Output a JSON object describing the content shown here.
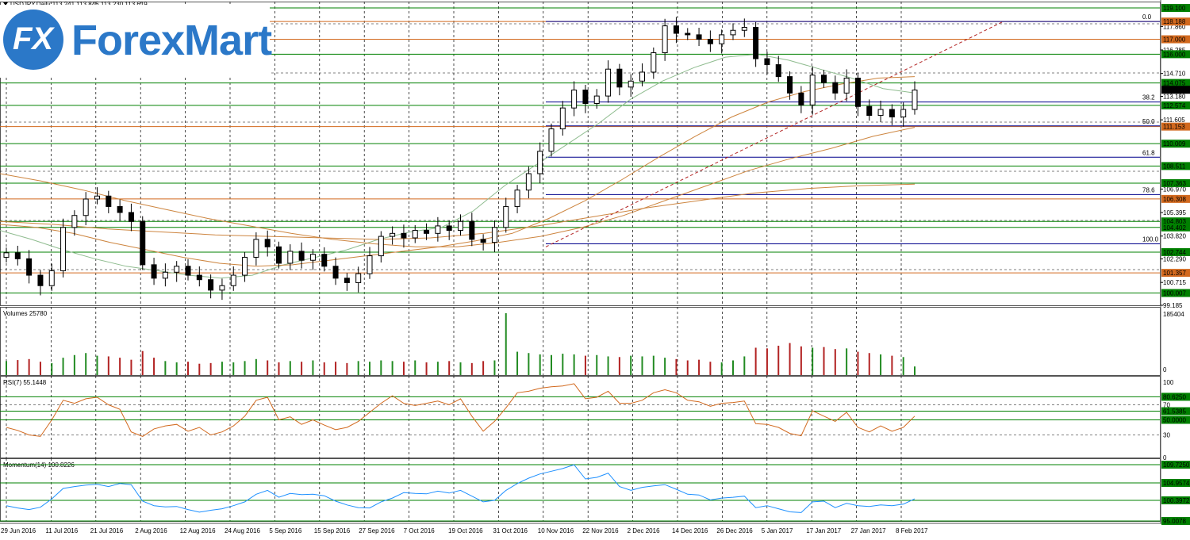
{
  "header": {
    "symbol_line": "USDJPY,Daily  113.241 113.846 113.230 113.619",
    "logo_mark": "FX",
    "logo_text": "ForexMart"
  },
  "colors": {
    "price_line": "#008000",
    "indicator": "#d2691e",
    "fib": "#00008b",
    "ma": "#cd853f",
    "momentum": "#1e90ff"
  },
  "chart_data": [
    {
      "type": "candlestick",
      "title": "USDJPY,Daily",
      "ohlc_readout": "113.241 113.846 113.230 113.619",
      "ylim": [
        99.185,
        119.1
      ],
      "price_axis_ticks": [
        "117.860",
        "116.285",
        "114.710",
        "113.180",
        "111.605",
        "106.970",
        "105.395",
        "103.820",
        "102.290",
        "100.715",
        "99.185"
      ],
      "levels": [
        {
          "value": 119.1,
          "label": "119.100",
          "color": "#008000"
        },
        {
          "value": 118.188,
          "label": "118.188",
          "color": "#d2691e"
        },
        {
          "value": 117.0,
          "label": "117.000",
          "color": "#d2691e"
        },
        {
          "value": 116.0,
          "label": "116.000",
          "color": "#008000"
        },
        {
          "value": 114.075,
          "label": "114.075",
          "color": "#008000"
        },
        {
          "value": 112.574,
          "label": "112.574",
          "color": "#008000"
        },
        {
          "value": 111.153,
          "label": "111.153",
          "color": "#d2691e"
        },
        {
          "value": 110.009,
          "label": "110.009",
          "color": "#008000"
        },
        {
          "value": 108.511,
          "label": "108.511",
          "color": "#008000"
        },
        {
          "value": 107.363,
          "label": "107.363",
          "color": "#008000"
        },
        {
          "value": 106.308,
          "label": "106.308",
          "color": "#d2691e"
        },
        {
          "value": 104.803,
          "label": "104.803",
          "color": "#008000"
        },
        {
          "value": 104.402,
          "label": "104.402",
          "color": "#008000"
        },
        {
          "value": 102.744,
          "label": "102.744",
          "color": "#008000"
        },
        {
          "value": 101.357,
          "label": "101.357",
          "color": "#d2691e"
        },
        {
          "value": 100.007,
          "label": "100.007",
          "color": "#008000"
        }
      ],
      "current_price": {
        "value": 113.619,
        "label": "113.619"
      },
      "fibonacci": [
        {
          "level": "0.0",
          "price": 118.188
        },
        {
          "level": "38.2",
          "price": 112.8
        },
        {
          "level": "50.0",
          "price": 111.2
        },
        {
          "level": "61.8",
          "price": 109.1
        },
        {
          "level": "78.6",
          "price": 106.6
        },
        {
          "level": "100.0",
          "price": 103.3
        }
      ],
      "x_labels": [
        "29 Jun 2016",
        "11 Jul 2016",
        "21 Jul 2016",
        "2 Aug 2016",
        "12 Aug 2016",
        "24 Aug 2016",
        "5 Sep 2016",
        "15 Sep 2016",
        "27 Sep 2016",
        "7 Oct 2016",
        "19 Oct 2016",
        "31 Oct 2016",
        "10 Nov 2016",
        "22 Nov 2016",
        "2 Dec 2016",
        "14 Dec 2016",
        "26 Dec 2016",
        "5 Jan 2017",
        "17 Jan 2017",
        "27 Jan 2017",
        "8 Feb 2017"
      ],
      "closes": [
        102.7,
        102.3,
        101.2,
        100.5,
        101.5,
        104.4,
        105.2,
        106.3,
        106.5,
        105.8,
        105.4,
        104.8,
        101.9,
        101.0,
        101.4,
        101.8,
        101.2,
        100.9,
        100.2,
        100.5,
        101.2,
        102.4,
        103.6,
        103.1,
        102.0,
        102.8,
        102.2,
        102.6,
        101.8,
        101.0,
        100.7,
        101.3,
        102.5,
        103.8,
        104.0,
        103.7,
        104.2,
        104.0,
        104.5,
        104.2,
        104.8,
        103.6,
        103.4,
        104.4,
        105.8,
        106.9,
        108.0,
        109.5,
        111.0,
        112.4,
        113.6,
        112.7,
        113.2,
        115.0,
        113.8,
        114.2,
        114.8,
        116.1,
        117.9,
        117.4,
        117.3,
        117.0,
        116.7,
        117.3,
        117.6,
        117.8,
        115.7,
        115.3,
        114.5,
        113.4,
        112.6,
        114.6,
        114.1,
        113.4,
        114.4,
        112.5,
        111.9,
        112.3,
        111.8,
        112.3,
        113.6
      ],
      "ma_series": [
        {
          "period_hint": "fast",
          "values": [
            104.2,
            103.6,
            102.9,
            102.3,
            101.8,
            101.5,
            101.2,
            101.0,
            101.2,
            101.9,
            102.4,
            102.9,
            103.6,
            104.1,
            104.4,
            105.5,
            107.2,
            108.6,
            110.0,
            111.4,
            113.0,
            114.2,
            115.1,
            115.8,
            116.0,
            115.6,
            115.0,
            114.4,
            113.7,
            113.4
          ]
        },
        {
          "period_hint": "medium",
          "values": [
            104.6,
            104.4,
            104.0,
            103.4,
            102.9,
            102.4,
            102.0,
            101.8,
            101.9,
            102.2,
            102.5,
            102.8,
            103.1,
            103.5,
            104.0,
            105.0,
            106.2,
            107.6,
            109.1,
            110.5,
            111.8,
            112.8,
            113.5,
            114.0,
            114.4,
            114.5
          ]
        },
        {
          "period_hint": "slow",
          "values": [
            108.0,
            107.5,
            106.9,
            106.2,
            105.6,
            105.0,
            104.5,
            104.0,
            103.6,
            103.3,
            103.1,
            103.1,
            103.4,
            103.8,
            104.4,
            105.2,
            106.2,
            107.2,
            108.2,
            109.0,
            109.7,
            110.5,
            111.1
          ]
        },
        {
          "period_hint": "very-slow",
          "values": [
            104.8,
            104.6,
            104.3,
            104.1,
            103.9,
            103.8,
            103.7,
            103.6,
            103.7,
            104.0,
            104.5,
            105.1,
            105.7,
            106.2,
            106.7,
            107.0,
            107.2,
            107.3
          ]
        }
      ]
    },
    {
      "type": "bar",
      "title": "Volumes 25780",
      "ylim": [
        0,
        185404
      ],
      "axis_labels": [
        "185404",
        "0"
      ],
      "values": [
        42000,
        45000,
        48000,
        40000,
        36000,
        52000,
        60000,
        66000,
        58000,
        56000,
        52000,
        46000,
        72000,
        52000,
        42000,
        38000,
        40000,
        34000,
        36000,
        40000,
        38000,
        42000,
        48000,
        44000,
        38000,
        42000,
        40000,
        44000,
        38000,
        40000,
        36000,
        42000,
        40000,
        44000,
        42000,
        40000,
        44000,
        38000,
        40000,
        42000,
        38000,
        36000,
        42000,
        44000,
        185404,
        70000,
        66000,
        62000,
        60000,
        64000,
        62000,
        58000,
        60000,
        56000,
        54000,
        58000,
        56000,
        58000,
        52000,
        48000,
        44000,
        46000,
        40000,
        38000,
        44000,
        56000,
        82000,
        80000,
        88000,
        96000,
        86000,
        82000,
        84000,
        78000,
        80000,
        70000,
        66000,
        62000,
        58000,
        54000,
        25780
      ]
    },
    {
      "type": "line",
      "title": "RSI(7) 55.1448",
      "ylim": [
        0,
        100
      ],
      "axis_ticks": [
        "100",
        "70",
        "50",
        "30",
        "0"
      ],
      "levels": [
        {
          "value": 80.625,
          "label": "80.6250"
        },
        {
          "value": 61.5385,
          "label": "61.5385"
        },
        {
          "value": 50.0,
          "label": "50.0000"
        }
      ],
      "values": [
        40,
        36,
        30,
        28,
        50,
        76,
        72,
        78,
        80,
        70,
        64,
        34,
        28,
        38,
        42,
        44,
        35,
        40,
        30,
        34,
        42,
        55,
        76,
        80,
        50,
        54,
        44,
        50,
        43,
        37,
        40,
        48,
        60,
        72,
        82,
        72,
        69,
        72,
        75,
        70,
        78,
        55,
        35,
        48,
        66,
        86,
        88,
        92,
        94,
        95,
        98,
        78,
        80,
        88,
        72,
        72,
        76,
        86,
        90,
        86,
        76,
        74,
        68,
        72,
        73,
        75,
        45,
        44,
        40,
        32,
        29,
        62,
        55,
        48,
        60,
        40,
        34,
        42,
        35,
        40,
        55
      ]
    },
    {
      "type": "line",
      "title": "Momentum(14) 100.8226",
      "ylim": [
        95.0078,
        109.725
      ],
      "axis_labels": [
        "109.7250",
        "104.9574",
        "100.3972",
        "95.0078"
      ],
      "values": [
        99.0,
        98.4,
        98.0,
        98.6,
        100.8,
        103.5,
        104.0,
        104.4,
        104.6,
        104.0,
        104.8,
        104.5,
        100.2,
        99.0,
        98.7,
        98.8,
        98.0,
        97.3,
        97.8,
        98.2,
        99.0,
        100.0,
        102.0,
        103.0,
        101.2,
        102.2,
        101.9,
        102.0,
        101.6,
        100.2,
        99.2,
        98.5,
        98.4,
        100.0,
        101.0,
        102.4,
        102.2,
        102.1,
        102.8,
        102.3,
        103.0,
        101.5,
        100.0,
        100.4,
        103.0,
        104.8,
        106.2,
        107.3,
        108.0,
        108.7,
        109.7,
        106.0,
        106.4,
        107.5,
        104.0,
        103.0,
        103.8,
        104.2,
        104.5,
        103.3,
        102.0,
        101.8,
        100.5,
        101.0,
        101.2,
        101.5,
        98.5,
        99.0,
        98.2,
        97.4,
        97.2,
        100.0,
        100.2,
        98.5,
        99.6,
        99.0,
        98.8,
        99.2,
        99.0,
        99.4,
        100.8
      ]
    }
  ]
}
